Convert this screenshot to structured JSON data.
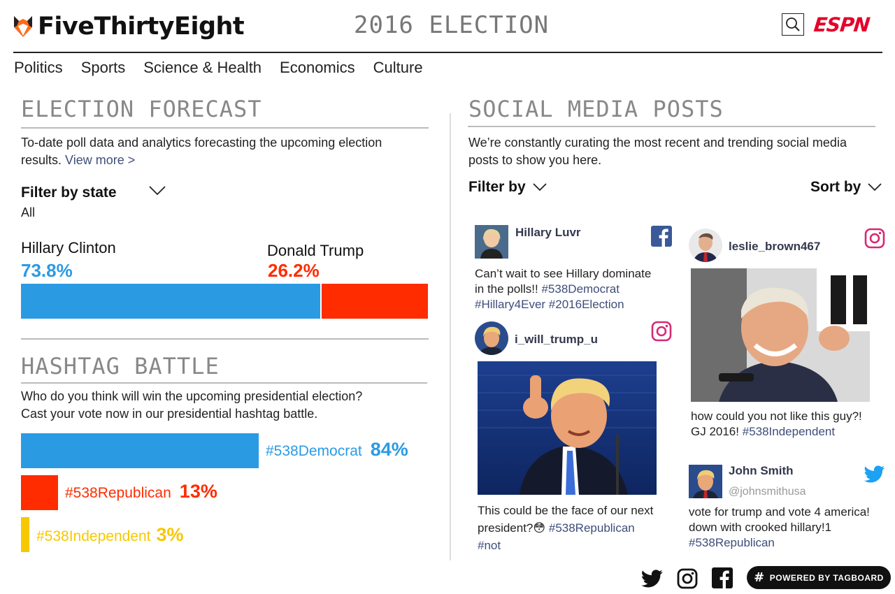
{
  "header": {
    "logo_text": "FiveThirtyEight",
    "section_title": "2016 ELECTION",
    "espn_label": "ESPN"
  },
  "nav": [
    "Politics",
    "Sports",
    "Science & Health",
    "Economics",
    "Culture"
  ],
  "forecast": {
    "title": "ELECTION FORECAST",
    "description": "To-date poll data and analytics forecasting the upcoming election results.",
    "view_more": "View more >",
    "filter_label": "Filter by state",
    "filter_value": "All",
    "candidates": [
      {
        "name": "Hillary Clinton",
        "pct_label": "73.8%",
        "pct": 73.8,
        "color": "#2a9be3"
      },
      {
        "name": "Donald Trump",
        "pct_label": "26.2%",
        "pct": 26.2,
        "color": "#ff2c00"
      }
    ]
  },
  "hashtag": {
    "title": "HASHTAG BATTLE",
    "description_line1": "Who do you think will win the upcoming presidential election?",
    "description_line2": "Cast your vote now in our presidential hashtag battle.",
    "items": [
      {
        "tag": "#538Democrat",
        "pct_label": "84%",
        "pct": 84,
        "color": "#2a9be3"
      },
      {
        "tag": "#538Republican",
        "pct_label": "13%",
        "pct": 13,
        "color": "#ff2c00"
      },
      {
        "tag": "#538Independent",
        "pct_label": "3%",
        "pct": 3,
        "color": "#f7c800"
      }
    ]
  },
  "social": {
    "title": "SOCIAL MEDIA POSTS",
    "description": "We’re constantly curating the most recent and trending social media posts to show you here.",
    "filter_label": "Filter by",
    "sort_label": "Sort by",
    "posts": [
      {
        "user": "Hillary Luvr",
        "platform": "facebook-icon",
        "text": "Can’t wait to see Hillary dominate in the polls!!",
        "tags": "#538Democrat #Hillary4Ever #2016Election"
      },
      {
        "user": "i_will_trump_u",
        "platform": "instagram-icon",
        "text": "This could be the face of our next president?😳",
        "tags": "#538Republican #not"
      },
      {
        "user": "leslie_brown467",
        "platform": "instagram-icon",
        "text": "how could you not like this guy?! GJ 2016!",
        "tags": "#538Independent"
      },
      {
        "user": "John Smith",
        "handle": "@johnsmithusa",
        "platform": "twitter-icon",
        "text": "vote for trump and vote 4 america! down with crooked hillary!1",
        "tags": "#538Republican"
      }
    ]
  },
  "footer": {
    "tagboard_label": "POWERED BY TAGBOARD"
  },
  "colors": {
    "democrat": "#2a9be3",
    "republican": "#ff2c00",
    "independent": "#f7c800",
    "link": "#3e4e7a",
    "espn": "#e4002b",
    "facebook": "#3b5998",
    "instagram": "#d62976",
    "twitter": "#1da1f2"
  }
}
